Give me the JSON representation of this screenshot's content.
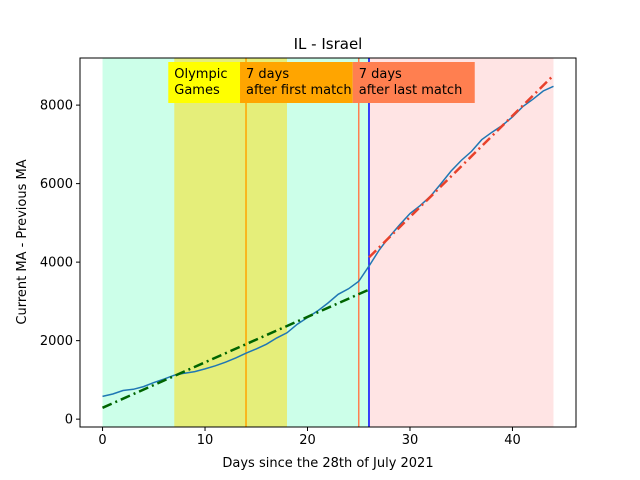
{
  "chart_data": {
    "type": "line",
    "title": "IL - Israel",
    "xlabel": "Days since the 28th of July 2021",
    "ylabel": "Current MA - Previous MA",
    "xlim": [
      -2.2,
      46.2
    ],
    "ylim": [
      -200,
      9200
    ],
    "xticks": [
      0,
      10,
      20,
      30,
      40
    ],
    "yticks": [
      0,
      2000,
      4000,
      6000,
      8000
    ],
    "grid": false,
    "shaded_regions": [
      {
        "x0": 0,
        "x1": 26,
        "color": "#ccffe9"
      },
      {
        "x0": 26,
        "x1": 44,
        "color": "#ffe4e4"
      },
      {
        "x0": 7,
        "x1": 18,
        "color": "#e5ee7a"
      }
    ],
    "vertical_lines": [
      {
        "x": 14,
        "color": "#ffa500"
      },
      {
        "x": 25,
        "color": "#ff7f50"
      },
      {
        "x": 26,
        "color": "#0000ff"
      }
    ],
    "annotations": [
      {
        "x": 7,
        "lines": [
          "Olympic",
          "Games"
        ],
        "bg": "#ffff00"
      },
      {
        "x": 14,
        "lines": [
          "7 days",
          "after first match"
        ],
        "bg": "#ffa500"
      },
      {
        "x": 25,
        "lines": [
          "7 days",
          "after last match"
        ],
        "bg": "#ff7f50"
      }
    ],
    "series": [
      {
        "color": "#1f77b4",
        "style": "solid",
        "x": [
          0,
          1,
          2,
          3,
          4,
          5,
          6,
          7,
          8,
          9,
          10,
          11,
          12,
          13,
          14,
          15,
          16,
          17,
          18,
          19,
          20,
          21,
          22,
          23,
          24,
          25,
          26,
          27,
          28,
          29,
          30,
          31,
          32,
          33,
          34,
          35,
          36,
          37,
          38,
          39,
          40,
          41,
          42,
          43,
          44
        ],
        "values": [
          580,
          640,
          730,
          760,
          830,
          930,
          1020,
          1120,
          1170,
          1210,
          1280,
          1360,
          1450,
          1560,
          1680,
          1790,
          1910,
          2070,
          2200,
          2420,
          2590,
          2760,
          2960,
          3180,
          3320,
          3510,
          3900,
          4310,
          4650,
          4950,
          5240,
          5440,
          5680,
          5990,
          6320,
          6590,
          6820,
          7120,
          7310,
          7480,
          7700,
          7960,
          8150,
          8360,
          8480
        ]
      },
      {
        "color": "#006400",
        "style": "dashdot",
        "x": [
          0,
          26
        ],
        "values": [
          290,
          3300
        ]
      },
      {
        "color": "#e8412b",
        "style": "dashdot",
        "x": [
          26,
          44
        ],
        "values": [
          4120,
          8760
        ]
      }
    ]
  }
}
